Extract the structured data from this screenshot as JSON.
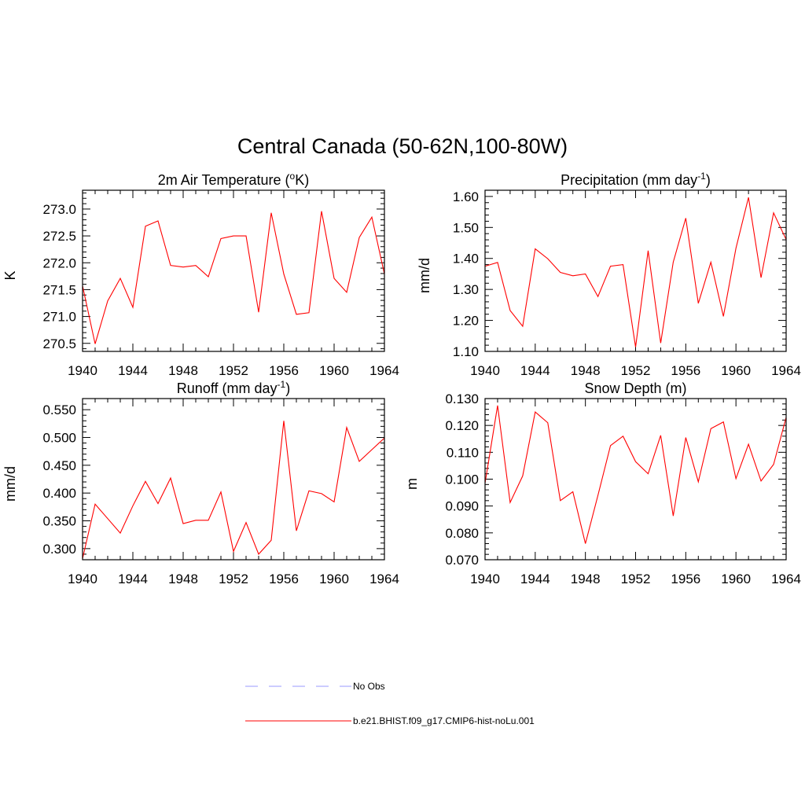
{
  "figure": {
    "title": "Central Canada (50-62N,100-80W)"
  },
  "legend": [
    {
      "label": "No Obs",
      "color": "#9a9aff",
      "dashed": true
    },
    {
      "label": "b.e21.BHIST.f09_g17.CMIP6-hist-noLu.001",
      "color": "#ff0000",
      "dashed": false
    }
  ],
  "chart_data": [
    {
      "type": "line",
      "title": "2m Air Temperature (",
      "title_sup": "o",
      "title_end": "K)",
      "ylabel": "K",
      "xlim": [
        1940,
        1964
      ],
      "ylim": [
        270.35,
        273.35
      ],
      "xticks": [
        1940,
        1944,
        1948,
        1952,
        1956,
        1960,
        1964
      ],
      "yticks": [
        270.5,
        271.0,
        271.5,
        272.0,
        272.5,
        273.0
      ],
      "ytick_labels": [
        "270.5",
        "271.0",
        "271.5",
        "272.0",
        "272.5",
        "273.0"
      ],
      "x": [
        1940,
        1941,
        1942,
        1943,
        1944,
        1945,
        1946,
        1947,
        1948,
        1949,
        1950,
        1951,
        1952,
        1953,
        1954,
        1955,
        1956,
        1957,
        1958,
        1959,
        1960,
        1961,
        1962,
        1963,
        1964
      ],
      "series": [
        {
          "color": "#ff0000",
          "values": [
            271.57,
            270.49,
            271.29,
            271.71,
            271.17,
            272.68,
            272.78,
            271.95,
            271.92,
            271.95,
            271.74,
            272.45,
            272.5,
            272.5,
            271.08,
            272.93,
            271.79,
            271.04,
            271.07,
            272.96,
            271.71,
            271.45,
            272.47,
            272.85,
            271.79
          ]
        }
      ]
    },
    {
      "type": "line",
      "title": "Precipitation (mm day",
      "title_sup": "-1",
      "title_end": ")",
      "ylabel": "mm/d",
      "xlim": [
        1940,
        1964
      ],
      "ylim": [
        1.1,
        1.62
      ],
      "xticks": [
        1940,
        1944,
        1948,
        1952,
        1956,
        1960,
        1964
      ],
      "yticks": [
        1.1,
        1.2,
        1.3,
        1.4,
        1.5,
        1.6
      ],
      "ytick_labels": [
        "1.10",
        "1.20",
        "1.30",
        "1.40",
        "1.50",
        "1.60"
      ],
      "x": [
        1940,
        1941,
        1942,
        1943,
        1944,
        1945,
        1946,
        1947,
        1948,
        1949,
        1950,
        1951,
        1952,
        1953,
        1954,
        1955,
        1956,
        1957,
        1958,
        1959,
        1960,
        1961,
        1962,
        1963,
        1964
      ],
      "series": [
        {
          "color": "#ff0000",
          "values": [
            1.375,
            1.387,
            1.232,
            1.181,
            1.431,
            1.399,
            1.355,
            1.344,
            1.35,
            1.277,
            1.375,
            1.38,
            1.114,
            1.425,
            1.127,
            1.388,
            1.53,
            1.255,
            1.388,
            1.213,
            1.433,
            1.597,
            1.338,
            1.547,
            1.461
          ]
        }
      ]
    },
    {
      "type": "line",
      "title": "Runoff (mm day",
      "title_sup": "-1",
      "title_end": ")",
      "ylabel": "mm/d",
      "xlim": [
        1940,
        1964
      ],
      "ylim": [
        0.28,
        0.57
      ],
      "xticks": [
        1940,
        1944,
        1948,
        1952,
        1956,
        1960,
        1964
      ],
      "yticks": [
        0.3,
        0.35,
        0.4,
        0.45,
        0.5,
        0.55
      ],
      "ytick_labels": [
        "0.300",
        "0.350",
        "0.400",
        "0.450",
        "0.500",
        "0.550"
      ],
      "x": [
        1940,
        1941,
        1942,
        1943,
        1944,
        1945,
        1946,
        1947,
        1948,
        1949,
        1950,
        1951,
        1952,
        1953,
        1954,
        1955,
        1956,
        1957,
        1958,
        1959,
        1960,
        1961,
        1962,
        1963,
        1964
      ],
      "series": [
        {
          "color": "#ff0000",
          "values": [
            0.282,
            0.38,
            0.354,
            0.328,
            0.377,
            0.421,
            0.381,
            0.427,
            0.345,
            0.351,
            0.351,
            0.402,
            0.295,
            0.347,
            0.29,
            0.315,
            0.53,
            0.332,
            0.404,
            0.399,
            0.384,
            0.518,
            0.457,
            0.478,
            0.499
          ]
        }
      ]
    },
    {
      "type": "line",
      "title": "Snow Depth (m)",
      "title_sup": "",
      "title_end": "",
      "ylabel": "m",
      "xlim": [
        1940,
        1964
      ],
      "ylim": [
        0.07,
        0.13
      ],
      "xticks": [
        1940,
        1944,
        1948,
        1952,
        1956,
        1960,
        1964
      ],
      "yticks": [
        0.07,
        0.08,
        0.09,
        0.1,
        0.11,
        0.12,
        0.13
      ],
      "ytick_labels": [
        "0.070",
        "0.080",
        "0.090",
        "0.100",
        "0.110",
        "0.120",
        "0.130"
      ],
      "x": [
        1940,
        1941,
        1942,
        1943,
        1944,
        1945,
        1946,
        1947,
        1948,
        1949,
        1950,
        1951,
        1952,
        1953,
        1954,
        1955,
        1956,
        1957,
        1958,
        1959,
        1960,
        1961,
        1962,
        1963,
        1964
      ],
      "series": [
        {
          "color": "#ff0000",
          "values": [
            0.0985,
            0.1274,
            0.0913,
            0.1012,
            0.125,
            0.121,
            0.092,
            0.0953,
            0.076,
            0.094,
            0.1125,
            0.116,
            0.1065,
            0.102,
            0.1163,
            0.0863,
            0.1155,
            0.099,
            0.1188,
            0.1213,
            0.1002,
            0.113,
            0.0993,
            0.1055,
            0.123
          ]
        }
      ]
    }
  ]
}
